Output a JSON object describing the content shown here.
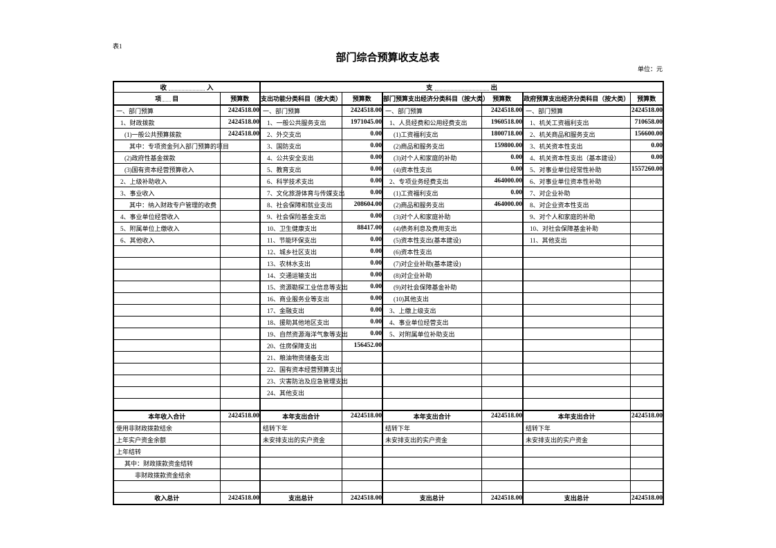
{
  "meta": {
    "sheet_label": "表1",
    "title": "部门综合预算收支总表",
    "unit_label": "单位：元"
  },
  "table": {
    "group_headers": {
      "income_left": "收",
      "income_right": "入",
      "expense_left": "支",
      "expense_right": "出"
    },
    "column_headers": {
      "item_left": "项",
      "item_right": "目",
      "budget": "预算数",
      "func_class": "支出功能分类科目（按大类）",
      "dept_econ_class": "部门预算支出经济分类科目（按大类）",
      "gov_econ_class": "政府预算支出经济分类科目（按大类）"
    },
    "rows": [
      {
        "t": "d",
        "c": [
          [
            "一、部门预算",
            0
          ],
          "2424518.00",
          [
            "一、部门预算",
            0
          ],
          "2424518.00",
          [
            "一、部门预算",
            0
          ],
          "2424518.00",
          [
            "一、部门预算",
            0
          ],
          "2424518.00"
        ]
      },
      {
        "t": "d",
        "c": [
          [
            "1、财政拨款",
            1
          ],
          "2424518.00",
          [
            "1、一般公共服务支出",
            1
          ],
          "1971045.00",
          [
            "1、人员经费和公用经费支出",
            1
          ],
          "1960518.00",
          [
            "1、机关工资福利支出",
            1
          ],
          "710658.00"
        ]
      },
      {
        "t": "d",
        "c": [
          [
            "(1)一般公共预算拨款",
            2
          ],
          "2424518.00",
          [
            "2、外交支出",
            1
          ],
          "0.00",
          [
            "(1)工资福利支出",
            2
          ],
          "1800718.00",
          [
            "2、机关商品和服务支出",
            1
          ],
          "156600.00"
        ]
      },
      {
        "t": "d",
        "c": [
          [
            "其中：专项资金列入部门预算的项目",
            3
          ],
          "",
          [
            "3、国防支出",
            1
          ],
          "0.00",
          [
            "(2)商品和服务支出",
            2
          ],
          "159800.00",
          [
            "3、机关资本性支出",
            1
          ],
          "0.00"
        ]
      },
      {
        "t": "d",
        "c": [
          [
            "(2)政府性基金拨款",
            2
          ],
          "",
          [
            "4、公共安全支出",
            1
          ],
          "0.00",
          [
            "(3)对个人和家庭的补助",
            2
          ],
          "0.00",
          [
            "4、机关资本性支出（基本建设）",
            1
          ],
          "0.00"
        ]
      },
      {
        "t": "d",
        "c": [
          [
            "(3)国有资本经营预算收入",
            2
          ],
          "",
          [
            "5、教育支出",
            1
          ],
          "0.00",
          [
            "(4)资本性支出",
            2
          ],
          "0.00",
          [
            "5、对事业单位经常性补助",
            1
          ],
          "1557260.00"
        ]
      },
      {
        "t": "d",
        "c": [
          [
            "2、上级补助收入",
            1
          ],
          "",
          [
            "6、科学技术支出",
            1
          ],
          "0.00",
          [
            "2、专项业务经费支出",
            1
          ],
          "464000.00",
          [
            "6、对事业单位资本性补助",
            1
          ],
          ""
        ]
      },
      {
        "t": "d",
        "c": [
          [
            "3、事业收入",
            1
          ],
          "",
          [
            "7、文化旅游体育与传媒支出",
            1
          ],
          "0.00",
          [
            "(1)工资福利支出",
            2
          ],
          "0.00",
          [
            "7、对企业补助",
            1
          ],
          ""
        ]
      },
      {
        "t": "d",
        "c": [
          [
            "其中：纳入财政专户管理的收费",
            3
          ],
          "",
          [
            "8、社会保障和就业支出",
            1
          ],
          "208604.00",
          [
            "(2)商品和服务支出",
            2
          ],
          "464000.00",
          [
            "8、对企业资本性支出",
            1
          ],
          ""
        ]
      },
      {
        "t": "d",
        "c": [
          [
            "4、事业单位经营收入",
            1
          ],
          "",
          [
            "9、社会保险基金支出",
            1
          ],
          "0.00",
          [
            "(3)对个人和家庭补助",
            2
          ],
          "",
          [
            "9、对个人和家庭的补助",
            1
          ],
          ""
        ]
      },
      {
        "t": "d",
        "c": [
          [
            "5、附属单位上缴收入",
            1
          ],
          "",
          [
            "10、卫生健康支出",
            1
          ],
          "88417.00",
          [
            "(4)债务利息及费用支出",
            2
          ],
          "",
          [
            "10、对社会保障基金补助",
            1
          ],
          ""
        ]
      },
      {
        "t": "d",
        "c": [
          [
            "6、其他收入",
            1
          ],
          "",
          [
            "11、节能环保支出",
            1
          ],
          "0.00",
          [
            "(5)资本性支出(基本建设)",
            2
          ],
          "",
          [
            "11、其他支出",
            1
          ],
          ""
        ]
      },
      {
        "t": "d",
        "c": [
          [
            "",
            0
          ],
          "",
          [
            "12、城乡社区支出",
            1
          ],
          "0.00",
          [
            "(6)资本性支出",
            2
          ],
          "",
          [
            "",
            0
          ],
          ""
        ]
      },
      {
        "t": "d",
        "c": [
          [
            "",
            0
          ],
          "",
          [
            "13、农林水支出",
            1
          ],
          "0.00",
          [
            "(7)对企业补助(基本建设)",
            2
          ],
          "",
          [
            "",
            0
          ],
          ""
        ]
      },
      {
        "t": "d",
        "c": [
          [
            "",
            0
          ],
          "",
          [
            "14、交通运输支出",
            1
          ],
          "0.00",
          [
            "(8)对企业补助",
            2
          ],
          "",
          [
            "",
            0
          ],
          ""
        ]
      },
      {
        "t": "d",
        "c": [
          [
            "",
            0
          ],
          "",
          [
            "15、资源勘探工业信息等支出",
            1
          ],
          "0.00",
          [
            "(9)对社会保障基金补助",
            2
          ],
          "",
          [
            "",
            0
          ],
          ""
        ]
      },
      {
        "t": "d",
        "c": [
          [
            "",
            0
          ],
          "",
          [
            "16、商业服务业等支出",
            1
          ],
          "0.00",
          [
            "(10)其他支出",
            2
          ],
          "",
          [
            "",
            0
          ],
          ""
        ]
      },
      {
        "t": "d",
        "c": [
          [
            "",
            0
          ],
          "",
          [
            "17、金融支出",
            1
          ],
          "0.00",
          [
            "3、上缴上级支出",
            1
          ],
          "",
          [
            "",
            0
          ],
          ""
        ]
      },
      {
        "t": "d",
        "c": [
          [
            "",
            0
          ],
          "",
          [
            "18、援助其他地区支出",
            1
          ],
          "0.00",
          [
            "4、事业单位经营支出",
            1
          ],
          "",
          [
            "",
            0
          ],
          ""
        ]
      },
      {
        "t": "d",
        "c": [
          [
            "",
            0
          ],
          "",
          [
            "19、自然资源海洋气象等支出",
            1
          ],
          "0.00",
          [
            "5、对附属单位补助支出",
            1
          ],
          "",
          [
            "",
            0
          ],
          ""
        ]
      },
      {
        "t": "d",
        "c": [
          [
            "",
            0
          ],
          "",
          [
            "20、住房保障支出",
            1
          ],
          "156452.00",
          [
            "",
            0
          ],
          "",
          [
            "",
            0
          ],
          ""
        ]
      },
      {
        "t": "d",
        "c": [
          [
            "",
            0
          ],
          "",
          [
            "21、粮油物资储备支出",
            1
          ],
          "",
          [
            "",
            0
          ],
          "",
          [
            "",
            0
          ],
          ""
        ]
      },
      {
        "t": "d",
        "c": [
          [
            "",
            0
          ],
          "",
          [
            "22、国有资本经营预算支出",
            1
          ],
          "",
          [
            "",
            0
          ],
          "",
          [
            "",
            0
          ],
          ""
        ]
      },
      {
        "t": "d",
        "c": [
          [
            "",
            0
          ],
          "",
          [
            "23、灾害防治及应急管理支出",
            1
          ],
          "",
          [
            "",
            0
          ],
          "",
          [
            "",
            0
          ],
          ""
        ]
      },
      {
        "t": "d",
        "c": [
          [
            "",
            0
          ],
          "",
          [
            "24、其他支出",
            1
          ],
          "",
          [
            "",
            0
          ],
          "",
          [
            "",
            0
          ],
          ""
        ]
      },
      {
        "t": "d",
        "c": [
          [
            "",
            0
          ],
          "",
          [
            "",
            0
          ],
          "",
          [
            "",
            0
          ],
          "",
          [
            "",
            0
          ],
          ""
        ]
      },
      {
        "t": "total",
        "c": [
          [
            "本年收入合计",
            0
          ],
          "2424518.00",
          [
            "本年支出合计",
            0
          ],
          "2424518.00",
          [
            "本年支出合计",
            0
          ],
          "2424518.00",
          [
            "本年支出合计",
            0
          ],
          "2424518.00"
        ]
      },
      {
        "t": "d",
        "c": [
          [
            "使用非财政拨款结余",
            0
          ],
          "",
          [
            "结转下年",
            0
          ],
          "",
          [
            "结转下年",
            0
          ],
          "",
          [
            "结转下年",
            0
          ],
          ""
        ]
      },
      {
        "t": "d",
        "c": [
          [
            "上年实户资金余额",
            0
          ],
          "",
          [
            "未安排支出的实户资金",
            0
          ],
          "",
          [
            "未安排支出的实户资金",
            0
          ],
          "",
          [
            "未安排支出的实户资金",
            0
          ],
          ""
        ]
      },
      {
        "t": "d",
        "c": [
          [
            "上年结转",
            0
          ],
          "",
          [
            "",
            0
          ],
          "",
          [
            "",
            0
          ],
          "",
          [
            "",
            0
          ],
          ""
        ]
      },
      {
        "t": "d",
        "c": [
          [
            "其中：财政拨款资金结转",
            2
          ],
          "",
          [
            "",
            0
          ],
          "",
          [
            "",
            0
          ],
          "",
          [
            "",
            0
          ],
          ""
        ]
      },
      {
        "t": "d",
        "c": [
          [
            "非财政拨款资金结余",
            4
          ],
          "",
          [
            "",
            0
          ],
          "",
          [
            "",
            0
          ],
          "",
          [
            "",
            0
          ],
          ""
        ]
      },
      {
        "t": "d",
        "c": [
          [
            "",
            0
          ],
          "",
          [
            "",
            0
          ],
          "",
          [
            "",
            0
          ],
          "",
          [
            "",
            0
          ],
          ""
        ]
      },
      {
        "t": "grand",
        "c": [
          [
            "收入总计",
            0
          ],
          "2424518.00",
          [
            "支出总计",
            0
          ],
          "2424518.00",
          [
            "支出总计",
            0
          ],
          "2424518.00",
          [
            "支出总计",
            0
          ],
          "2424518.00"
        ]
      }
    ]
  }
}
